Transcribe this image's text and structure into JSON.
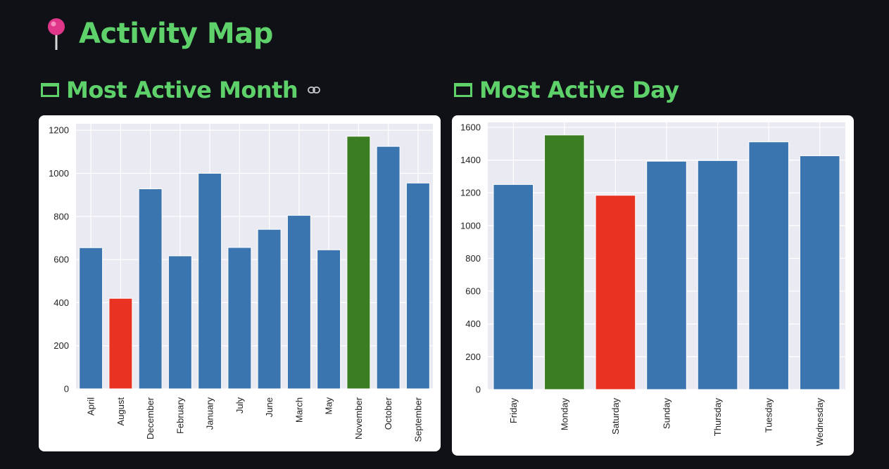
{
  "page": {
    "title": "Activity Map",
    "title_icon": "pushpin-icon"
  },
  "sections": {
    "month": {
      "heading": "Most Active Month",
      "heading_icon": "frame-icon",
      "anchor_icon": "link-icon"
    },
    "day": {
      "heading": "Most Active Day",
      "heading_icon": "frame-icon"
    }
  },
  "colors": {
    "accent": "#5fd16b",
    "bar_default": "#3b75af",
    "bar_max": "#3a7d22",
    "bar_min": "#e83323",
    "plot_bg": "#eaeaf2",
    "background": "#0f1117"
  },
  "chart_data": [
    {
      "type": "bar",
      "title": "",
      "xlabel": "",
      "ylabel": "",
      "categories": [
        "April",
        "August",
        "December",
        "February",
        "January",
        "July",
        "June",
        "March",
        "May",
        "November",
        "October",
        "September"
      ],
      "values": [
        655,
        420,
        928,
        617,
        1000,
        656,
        740,
        805,
        645,
        1172,
        1125,
        955
      ],
      "ylim": [
        0,
        1230
      ],
      "yticks": [
        0,
        200,
        400,
        600,
        800,
        1000,
        1200
      ],
      "highlight_max": "November",
      "highlight_min": "August",
      "grid": true
    },
    {
      "type": "bar",
      "title": "",
      "xlabel": "",
      "ylabel": "",
      "categories": [
        "Friday",
        "Monday",
        "Saturday",
        "Sunday",
        "Thursday",
        "Tuesday",
        "Wednesday"
      ],
      "values": [
        1251,
        1553,
        1185,
        1393,
        1397,
        1511,
        1426
      ],
      "ylim": [
        0,
        1630
      ],
      "yticks": [
        0,
        200,
        400,
        600,
        800,
        1000,
        1200,
        1400,
        1600
      ],
      "highlight_max": "Monday",
      "highlight_min": "Saturday",
      "grid": true
    }
  ]
}
